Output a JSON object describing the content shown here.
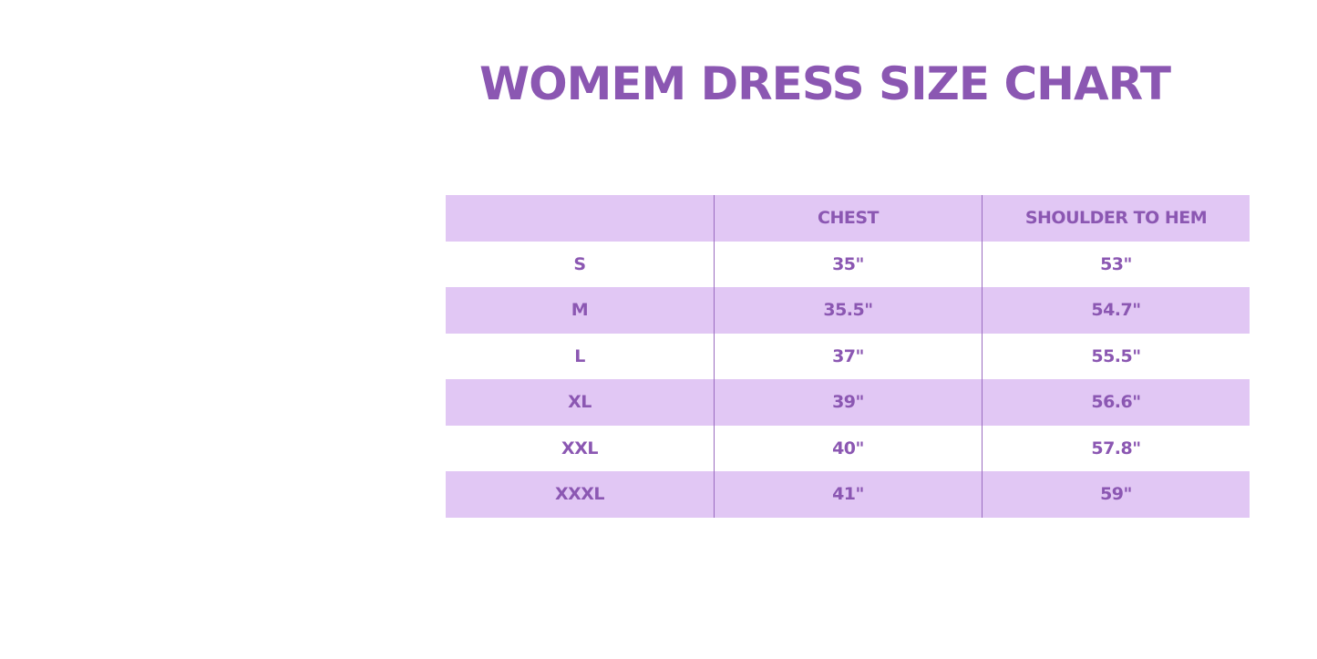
{
  "title": "WOMEM DRESS SIZE CHART",
  "table": {
    "header": [
      "CHEST",
      "SHOULDER TO HEM"
    ],
    "rows": [
      [
        "S",
        "35\"",
        "53\""
      ],
      [
        "M",
        "35.5\"",
        "54.7\""
      ],
      [
        "L",
        "37\"",
        "55.5\""
      ],
      [
        "XL",
        "39\"",
        "56.6\""
      ],
      [
        "XXL",
        "40\"",
        "57.8\""
      ],
      [
        "XXXL",
        "41\"",
        "59\""
      ]
    ]
  }
}
